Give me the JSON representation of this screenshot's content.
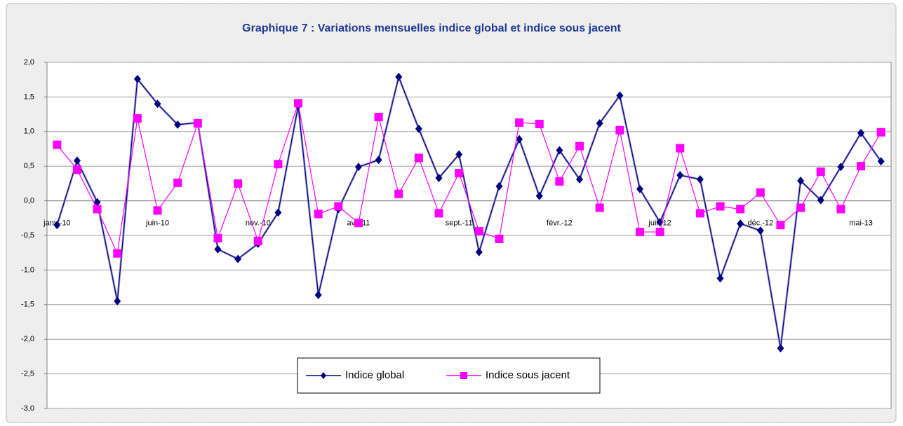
{
  "chart_data": {
    "type": "line",
    "title": "Graphique 7 : Variations mensuelles indice global et indice sous jacent",
    "categories": [
      "janv.-10",
      null,
      null,
      null,
      null,
      "juin-10",
      null,
      null,
      null,
      null,
      "nov.-10",
      null,
      null,
      null,
      null,
      "avr.-11",
      null,
      null,
      null,
      null,
      "sept.-11",
      null,
      null,
      null,
      null,
      "févr.-12",
      null,
      null,
      null,
      null,
      "juil.-12",
      null,
      null,
      null,
      null,
      "déc.-12",
      null,
      null,
      null,
      null,
      "mai-13",
      null
    ],
    "series": [
      {
        "name": "Indice global",
        "color": "#000080",
        "marker": "diamond",
        "values": [
          -0.35,
          0.58,
          -0.02,
          -1.45,
          1.76,
          1.4,
          1.1,
          1.13,
          -0.7,
          -0.84,
          -0.62,
          -0.17,
          1.37,
          -1.36,
          -0.12,
          0.49,
          0.59,
          1.79,
          1.04,
          0.33,
          0.67,
          -0.74,
          0.21,
          0.89,
          0.07,
          0.73,
          0.31,
          1.12,
          1.52,
          0.17,
          -0.31,
          0.37,
          0.31,
          -1.12,
          -0.33,
          -0.43,
          -2.13,
          0.29,
          0.01,
          0.49,
          0.98,
          0.57
        ]
      },
      {
        "name": "Indice sous jacent",
        "color": "#ff00ff",
        "marker": "square",
        "values": [
          0.81,
          0.45,
          -0.12,
          -0.76,
          1.19,
          -0.14,
          0.26,
          1.12,
          -0.54,
          0.25,
          -0.58,
          0.53,
          1.41,
          -0.19,
          -0.08,
          -0.32,
          1.21,
          0.1,
          0.62,
          -0.18,
          0.4,
          -0.44,
          -0.55,
          1.13,
          1.11,
          0.28,
          0.79,
          -0.1,
          1.02,
          -0.45,
          -0.45,
          0.76,
          -0.18,
          -0.08,
          -0.12,
          0.12,
          -0.35,
          -0.1,
          0.42,
          -0.12,
          0.5,
          0.99
        ]
      }
    ],
    "ylim": [
      -3,
      2
    ],
    "yticks": [
      {
        "value": -3,
        "label": "-3,0"
      },
      {
        "value": -2.5,
        "label": "-2,5"
      },
      {
        "value": -2,
        "label": "-2,0"
      },
      {
        "value": -1.5,
        "label": "-1,5"
      },
      {
        "value": -1,
        "label": "-1,0"
      },
      {
        "value": -0.5,
        "label": "-0,5"
      },
      {
        "value": 0,
        "label": "0,0"
      },
      {
        "value": 0.5,
        "label": "0,5"
      },
      {
        "value": 1,
        "label": "1,0"
      },
      {
        "value": 1.5,
        "label": "1,5"
      },
      {
        "value": 2,
        "label": "2,0"
      }
    ],
    "grid": true,
    "legend": "bottom"
  }
}
